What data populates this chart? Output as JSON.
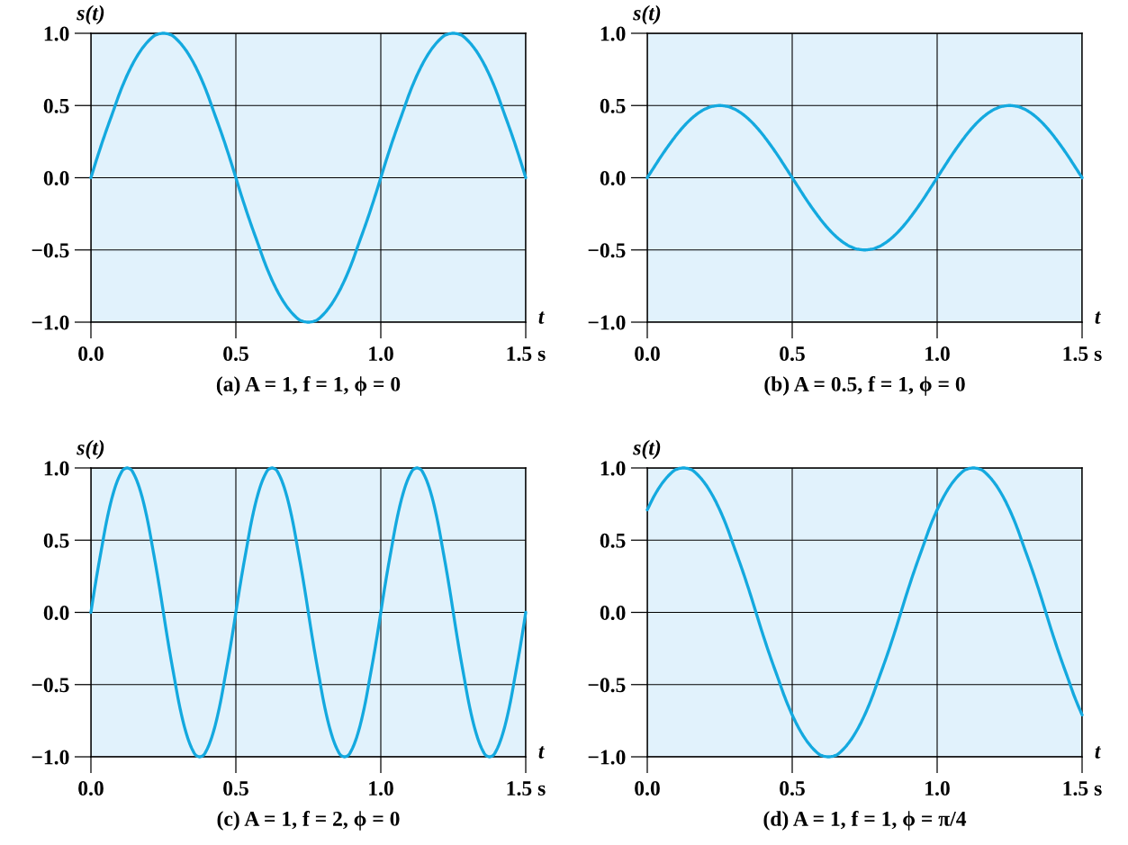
{
  "chart_data": [
    {
      "type": "line",
      "title": "(a) A = 1, f = 1, ϕ = 0",
      "xlabel": "t",
      "ylabel": "s(t)",
      "x": [
        0,
        0.025,
        0.05,
        0.075,
        0.1,
        0.125,
        0.15,
        0.175,
        0.2,
        0.225,
        0.25,
        0.275,
        0.3,
        0.325,
        0.35,
        0.375,
        0.4,
        0.425,
        0.45,
        0.475,
        0.5,
        0.525,
        0.55,
        0.575,
        0.6,
        0.625,
        0.65,
        0.675,
        0.7,
        0.725,
        0.75,
        0.775,
        0.8,
        0.825,
        0.85,
        0.875,
        0.9,
        0.925,
        0.95,
        0.975,
        1,
        1.025,
        1.05,
        1.075,
        1.1,
        1.125,
        1.15,
        1.175,
        1.2,
        1.225,
        1.25,
        1.275,
        1.3,
        1.325,
        1.35,
        1.375,
        1.4,
        1.425,
        1.45,
        1.475,
        1.5
      ],
      "series": [
        {
          "color": "#14a9df",
          "values": [
            0,
            0.16,
            0.31,
            0.45,
            0.59,
            0.71,
            0.81,
            0.89,
            0.95,
            0.99,
            1,
            0.99,
            0.95,
            0.89,
            0.81,
            0.71,
            0.59,
            0.45,
            0.31,
            0.16,
            0,
            -0.16,
            -0.31,
            -0.45,
            -0.59,
            -0.71,
            -0.81,
            -0.89,
            -0.95,
            -0.99,
            -1,
            -0.99,
            -0.95,
            -0.89,
            -0.81,
            -0.71,
            -0.59,
            -0.45,
            -0.31,
            -0.16,
            0,
            0.16,
            0.31,
            0.45,
            0.59,
            0.71,
            0.81,
            0.89,
            0.95,
            0.99,
            1,
            0.99,
            0.95,
            0.89,
            0.81,
            0.71,
            0.59,
            0.45,
            0.31,
            0.16,
            0
          ]
        }
      ],
      "xlim": [
        0,
        1.5
      ],
      "ylim": [
        -1,
        1
      ],
      "xticks": [
        {
          "value": 0,
          "label": "0.0"
        },
        {
          "value": 0.5,
          "label": "0.5"
        },
        {
          "value": 1,
          "label": "1.0"
        },
        {
          "value": 1.5,
          "label": "1.5 s"
        }
      ],
      "yticks": [
        {
          "value": -1,
          "label": "−1.0"
        },
        {
          "value": -0.5,
          "label": "−0.5"
        },
        {
          "value": 0,
          "label": "0.0"
        },
        {
          "value": 0.5,
          "label": "0.5"
        },
        {
          "value": 1,
          "label": "1.0"
        }
      ],
      "grid": true,
      "marker": "none",
      "line_style": "solid"
    },
    {
      "type": "line",
      "title": "(b) A = 0.5, f = 1, ϕ = 0",
      "xlabel": "t",
      "ylabel": "s(t)",
      "x": [
        0,
        0.025,
        0.05,
        0.075,
        0.1,
        0.125,
        0.15,
        0.175,
        0.2,
        0.225,
        0.25,
        0.275,
        0.3,
        0.325,
        0.35,
        0.375,
        0.4,
        0.425,
        0.45,
        0.475,
        0.5,
        0.525,
        0.55,
        0.575,
        0.6,
        0.625,
        0.65,
        0.675,
        0.7,
        0.725,
        0.75,
        0.775,
        0.8,
        0.825,
        0.85,
        0.875,
        0.9,
        0.925,
        0.95,
        0.975,
        1,
        1.025,
        1.05,
        1.075,
        1.1,
        1.125,
        1.15,
        1.175,
        1.2,
        1.225,
        1.25,
        1.275,
        1.3,
        1.325,
        1.35,
        1.375,
        1.4,
        1.425,
        1.45,
        1.475,
        1.5
      ],
      "series": [
        {
          "color": "#14a9df",
          "values": [
            0,
            0.078,
            0.155,
            0.227,
            0.294,
            0.354,
            0.405,
            0.446,
            0.476,
            0.494,
            0.5,
            0.494,
            0.476,
            0.446,
            0.405,
            0.354,
            0.294,
            0.227,
            0.155,
            0.078,
            0,
            -0.078,
            -0.155,
            -0.227,
            -0.294,
            -0.354,
            -0.405,
            -0.446,
            -0.476,
            -0.494,
            -0.5,
            -0.494,
            -0.476,
            -0.446,
            -0.405,
            -0.354,
            -0.294,
            -0.227,
            -0.155,
            -0.078,
            0,
            0.078,
            0.155,
            0.227,
            0.294,
            0.354,
            0.405,
            0.446,
            0.476,
            0.494,
            0.5,
            0.494,
            0.476,
            0.446,
            0.405,
            0.354,
            0.294,
            0.227,
            0.155,
            0.078,
            0
          ]
        }
      ],
      "xlim": [
        0,
        1.5
      ],
      "ylim": [
        -1,
        1
      ],
      "xticks": [
        {
          "value": 0,
          "label": "0.0"
        },
        {
          "value": 0.5,
          "label": "0.5"
        },
        {
          "value": 1,
          "label": "1.0"
        },
        {
          "value": 1.5,
          "label": "1.5 s"
        }
      ],
      "yticks": [
        {
          "value": -1,
          "label": "−1.0"
        },
        {
          "value": -0.5,
          "label": "−0.5"
        },
        {
          "value": 0,
          "label": "0.0"
        },
        {
          "value": 0.5,
          "label": "0.5"
        },
        {
          "value": 1,
          "label": "1.0"
        }
      ],
      "grid": true,
      "marker": "none",
      "line_style": "solid"
    },
    {
      "type": "line",
      "title": "(c) A = 1, f = 2, ϕ = 0",
      "xlabel": "t",
      "ylabel": "s(t)",
      "x": [
        0,
        0.0125,
        0.025,
        0.0375,
        0.05,
        0.0625,
        0.075,
        0.0875,
        0.1,
        0.1125,
        0.125,
        0.1375,
        0.15,
        0.1625,
        0.175,
        0.1875,
        0.2,
        0.2125,
        0.225,
        0.2375,
        0.25,
        0.2625,
        0.275,
        0.2875,
        0.3,
        0.3125,
        0.325,
        0.3375,
        0.35,
        0.3625,
        0.375,
        0.3875,
        0.4,
        0.4125,
        0.425,
        0.4375,
        0.45,
        0.4625,
        0.475,
        0.4875,
        0.5,
        0.5125,
        0.525,
        0.5375,
        0.55,
        0.5625,
        0.575,
        0.5875,
        0.6,
        0.6125,
        0.625,
        0.6375,
        0.65,
        0.6625,
        0.675,
        0.6875,
        0.7,
        0.7125,
        0.725,
        0.7375,
        0.75,
        0.7625,
        0.775,
        0.7875,
        0.8,
        0.8125,
        0.825,
        0.8375,
        0.85,
        0.8625,
        0.875,
        0.8875,
        0.9,
        0.9125,
        0.925,
        0.9375,
        0.95,
        0.9625,
        0.975,
        0.9875,
        1,
        1.0125,
        1.025,
        1.0375,
        1.05,
        1.0625,
        1.075,
        1.0875,
        1.1,
        1.1125,
        1.125,
        1.1375,
        1.15,
        1.1625,
        1.175,
        1.1875,
        1.2,
        1.2125,
        1.225,
        1.2375,
        1.25,
        1.2625,
        1.275,
        1.2875,
        1.3,
        1.3125,
        1.325,
        1.3375,
        1.35,
        1.3625,
        1.375,
        1.3875,
        1.4,
        1.4125,
        1.425,
        1.4375,
        1.45,
        1.4625,
        1.475,
        1.4875,
        1.5
      ],
      "series": [
        {
          "color": "#14a9df",
          "values": [
            0,
            0.16,
            0.31,
            0.45,
            0.59,
            0.71,
            0.81,
            0.89,
            0.95,
            0.99,
            1,
            0.99,
            0.95,
            0.89,
            0.81,
            0.71,
            0.59,
            0.45,
            0.31,
            0.16,
            0,
            -0.16,
            -0.31,
            -0.45,
            -0.59,
            -0.71,
            -0.81,
            -0.89,
            -0.95,
            -0.99,
            -1,
            -0.99,
            -0.95,
            -0.89,
            -0.81,
            -0.71,
            -0.59,
            -0.45,
            -0.31,
            -0.16,
            0,
            0.16,
            0.31,
            0.45,
            0.59,
            0.71,
            0.81,
            0.89,
            0.95,
            0.99,
            1,
            0.99,
            0.95,
            0.89,
            0.81,
            0.71,
            0.59,
            0.45,
            0.31,
            0.16,
            0,
            -0.16,
            -0.31,
            -0.45,
            -0.59,
            -0.71,
            -0.81,
            -0.89,
            -0.95,
            -0.99,
            -1,
            -0.99,
            -0.95,
            -0.89,
            -0.81,
            -0.71,
            -0.59,
            -0.45,
            -0.31,
            -0.16,
            0,
            0.16,
            0.31,
            0.45,
            0.59,
            0.71,
            0.81,
            0.89,
            0.95,
            0.99,
            1,
            0.99,
            0.95,
            0.89,
            0.81,
            0.71,
            0.59,
            0.45,
            0.31,
            0.16,
            0,
            -0.16,
            -0.31,
            -0.45,
            -0.59,
            -0.71,
            -0.81,
            -0.89,
            -0.95,
            -0.99,
            -1,
            -0.99,
            -0.95,
            -0.89,
            -0.81,
            -0.71,
            -0.59,
            -0.45,
            -0.31,
            -0.16,
            0
          ]
        }
      ],
      "xlim": [
        0,
        1.5
      ],
      "ylim": [
        -1,
        1
      ],
      "xticks": [
        {
          "value": 0,
          "label": "0.0"
        },
        {
          "value": 0.5,
          "label": "0.5"
        },
        {
          "value": 1,
          "label": "1.0"
        },
        {
          "value": 1.5,
          "label": "1.5 s"
        }
      ],
      "yticks": [
        {
          "value": -1,
          "label": "−1.0"
        },
        {
          "value": -0.5,
          "label": "−0.5"
        },
        {
          "value": 0,
          "label": "0.0"
        },
        {
          "value": 0.5,
          "label": "0.5"
        },
        {
          "value": 1,
          "label": "1.0"
        }
      ],
      "grid": true,
      "marker": "none",
      "line_style": "solid"
    },
    {
      "type": "line",
      "title": "(d) A = 1, f = 1, ϕ = π/4",
      "xlabel": "t",
      "ylabel": "s(t)",
      "x": [
        0,
        0.025,
        0.05,
        0.075,
        0.1,
        0.125,
        0.15,
        0.175,
        0.2,
        0.225,
        0.25,
        0.275,
        0.3,
        0.325,
        0.35,
        0.375,
        0.4,
        0.425,
        0.45,
        0.475,
        0.5,
        0.525,
        0.55,
        0.575,
        0.6,
        0.625,
        0.65,
        0.675,
        0.7,
        0.725,
        0.75,
        0.775,
        0.8,
        0.825,
        0.85,
        0.875,
        0.9,
        0.925,
        0.95,
        0.975,
        1,
        1.025,
        1.05,
        1.075,
        1.1,
        1.125,
        1.15,
        1.175,
        1.2,
        1.225,
        1.25,
        1.275,
        1.3,
        1.325,
        1.35,
        1.375,
        1.4,
        1.425,
        1.45,
        1.475,
        1.5
      ],
      "series": [
        {
          "color": "#14a9df",
          "values": [
            0.71,
            0.81,
            0.89,
            0.95,
            0.99,
            1,
            0.99,
            0.95,
            0.89,
            0.81,
            0.71,
            0.59,
            0.45,
            0.31,
            0.16,
            0,
            -0.16,
            -0.31,
            -0.45,
            -0.59,
            -0.71,
            -0.81,
            -0.89,
            -0.95,
            -0.99,
            -1,
            -0.99,
            -0.95,
            -0.89,
            -0.81,
            -0.71,
            -0.59,
            -0.45,
            -0.31,
            -0.16,
            0,
            0.16,
            0.31,
            0.45,
            0.59,
            0.71,
            0.81,
            0.89,
            0.95,
            0.99,
            1,
            0.99,
            0.95,
            0.89,
            0.81,
            0.71,
            0.59,
            0.45,
            0.31,
            0.16,
            0,
            -0.16,
            -0.31,
            -0.45,
            -0.59,
            -0.71
          ]
        }
      ],
      "xlim": [
        0,
        1.5
      ],
      "ylim": [
        -1,
        1
      ],
      "xticks": [
        {
          "value": 0,
          "label": "0.0"
        },
        {
          "value": 0.5,
          "label": "0.5"
        },
        {
          "value": 1,
          "label": "1.0"
        },
        {
          "value": 1.5,
          "label": "1.5 s"
        }
      ],
      "yticks": [
        {
          "value": -1,
          "label": "−1.0"
        },
        {
          "value": -0.5,
          "label": "−0.5"
        },
        {
          "value": 0,
          "label": "0.0"
        },
        {
          "value": 0.5,
          "label": "0.5"
        },
        {
          "value": 1,
          "label": "1.0"
        }
      ],
      "grid": true,
      "marker": "none",
      "line_style": "solid"
    }
  ]
}
